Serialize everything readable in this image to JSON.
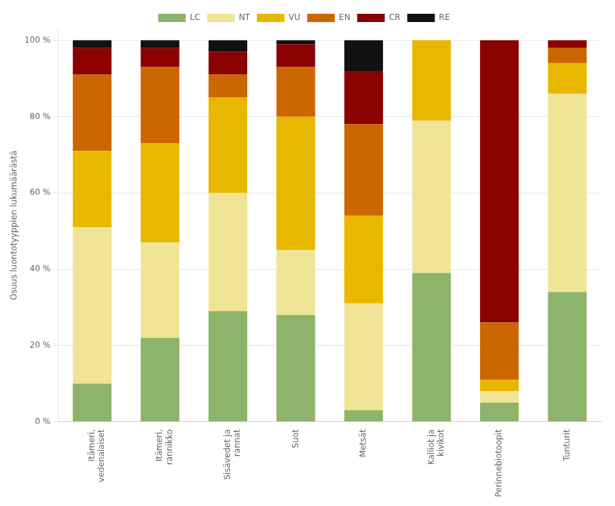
{
  "chart_data": {
    "type": "bar",
    "stacked": true,
    "categories": [
      "Itämeri,\nvedenalaiset",
      "Itämeri,\nrannikko",
      "Sisävedet ja\nrannat",
      "Suot",
      "Metsät",
      "Kalliot ja\nkivikot",
      "Perinnebiotoopit",
      "Tunturit"
    ],
    "series": [
      {
        "name": "LC",
        "color": "#8db46a",
        "values": [
          10,
          22,
          29,
          28,
          3,
          39,
          5,
          34
        ]
      },
      {
        "name": "NT",
        "color": "#f0e496",
        "values": [
          41,
          25,
          31,
          17,
          28,
          40,
          3,
          52
        ]
      },
      {
        "name": "VU",
        "color": "#e8b800",
        "values": [
          20,
          26,
          25,
          35,
          23,
          21,
          3,
          8
        ]
      },
      {
        "name": "EN",
        "color": "#cc6600",
        "values": [
          20,
          20,
          6,
          13,
          24,
          0,
          15,
          4
        ]
      },
      {
        "name": "CR",
        "color": "#8b0000",
        "values": [
          7,
          5,
          6,
          6,
          14,
          0,
          74,
          2
        ]
      },
      {
        "name": "RE",
        "color": "#111111",
        "values": [
          2,
          2,
          3,
          1,
          8,
          0,
          0,
          0
        ]
      }
    ],
    "ylabel": "Osuus luontotyyppien lukumäärästä",
    "ylim": [
      0,
      103
    ],
    "yticks": [
      {
        "value": 0,
        "label": "0 %"
      },
      {
        "value": 20,
        "label": "20 %"
      },
      {
        "value": 40,
        "label": "40 %"
      },
      {
        "value": 60,
        "label": "60 %"
      },
      {
        "value": 80,
        "label": "80 %"
      },
      {
        "value": 100,
        "label": "100 %"
      }
    ],
    "grid": true,
    "legend": "top"
  }
}
